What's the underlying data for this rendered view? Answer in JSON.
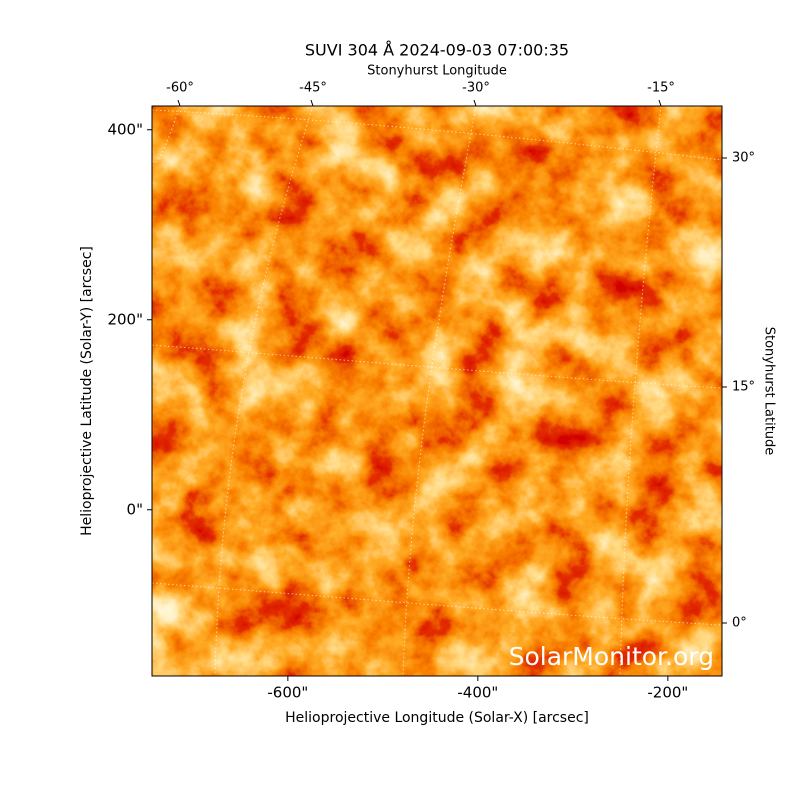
{
  "chart_data": {
    "type": "image",
    "title": "SUVI 304 Å 2024-09-03 07:00:35",
    "xlabel": "Helioprojective Longitude (Solar-X) [arcsec]",
    "ylabel": "Helioprojective Latitude (Solar-Y) [arcsec]",
    "top_label": "Stonyhurst Longitude",
    "right_label": "Stonyhurst Latitude",
    "xlim": [
      -743,
      -143
    ],
    "ylim": [
      -175,
      425
    ],
    "xticks": [
      {
        "value": -600,
        "label": "-600\""
      },
      {
        "value": -400,
        "label": "-400\""
      },
      {
        "value": -200,
        "label": "-200\""
      }
    ],
    "yticks": [
      {
        "value": 0,
        "label": "0\""
      },
      {
        "value": 200,
        "label": "200\""
      },
      {
        "value": 400,
        "label": "400\""
      }
    ],
    "top_ticks": [
      "-60°",
      "-45°",
      "-30°",
      "-15°"
    ],
    "right_ticks": [
      "30°",
      "15°",
      "0°"
    ],
    "watermark": "SolarMonitor.org"
  }
}
